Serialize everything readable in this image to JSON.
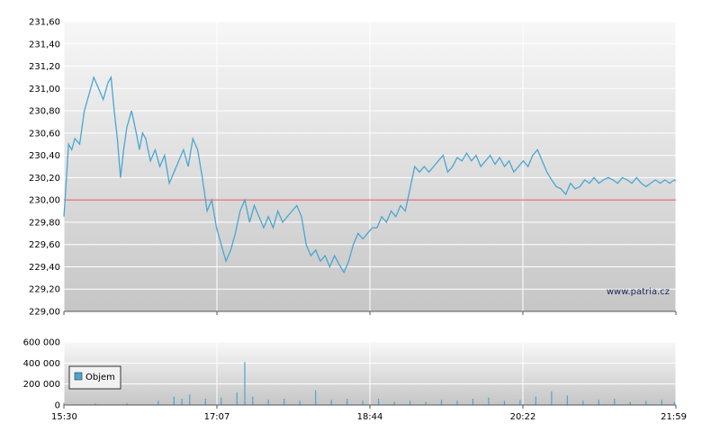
{
  "watermark": "www.patria.cz",
  "colors": {
    "price_line": "#4aa6d1",
    "reference_line": "#e0505a",
    "volume_bar": "#4aa6d1",
    "grid": "#ffffff",
    "plot_bg_top": "#f7f7f7",
    "plot_bg_bottom": "#c6c6c6",
    "axis": "#555555"
  },
  "chart_data": [
    {
      "type": "line",
      "name": "price",
      "ylim": [
        229.0,
        231.6
      ],
      "y_ticks": [
        "229,00",
        "229,20",
        "229,40",
        "229,60",
        "229,80",
        "230,00",
        "230,20",
        "230,40",
        "230,60",
        "230,80",
        "231,00",
        "231,20",
        "231,40",
        "231,60"
      ],
      "reference_value": 230.0,
      "x_ticks": [
        "15:30",
        "17:07",
        "18:44",
        "20:22",
        "21:59"
      ],
      "x_domain_minutes": [
        930,
        1319
      ],
      "grid": true,
      "series": [
        {
          "x": [
            930,
            931,
            933,
            935,
            937,
            940,
            943,
            946,
            949,
            952,
            955,
            958,
            960,
            962,
            964,
            966,
            968,
            970,
            973,
            976,
            978,
            980,
            982,
            985,
            988,
            991,
            994,
            997,
            1000,
            1003,
            1006,
            1009,
            1012,
            1015,
            1018,
            1021,
            1024,
            1027,
            1030,
            1033,
            1036,
            1039,
            1042,
            1045,
            1048,
            1051,
            1054,
            1057,
            1060,
            1063,
            1066,
            1069,
            1072,
            1075,
            1078,
            1081,
            1084,
            1087,
            1090,
            1093,
            1096,
            1099,
            1102,
            1105,
            1108,
            1111,
            1114,
            1117,
            1120,
            1123,
            1126,
            1129,
            1132,
            1135,
            1138,
            1141,
            1144,
            1147,
            1150,
            1153,
            1156,
            1159,
            1162,
            1165,
            1168,
            1171,
            1174,
            1177,
            1180,
            1183,
            1186,
            1189,
            1192,
            1195,
            1198,
            1201,
            1204,
            1207,
            1210,
            1213,
            1216,
            1219,
            1222,
            1225,
            1228,
            1231,
            1234,
            1237,
            1240,
            1243,
            1246,
            1249,
            1252,
            1255,
            1258,
            1261,
            1264,
            1267,
            1270,
            1273,
            1276,
            1279,
            1282,
            1285,
            1288,
            1291,
            1294,
            1297,
            1300,
            1303,
            1306,
            1309,
            1312,
            1315,
            1318,
            1319
          ],
          "y": [
            229.85,
            230.05,
            230.5,
            230.45,
            230.55,
            230.5,
            230.8,
            230.95,
            231.1,
            231.0,
            230.9,
            231.05,
            231.1,
            230.8,
            230.55,
            230.2,
            230.45,
            230.65,
            230.8,
            230.6,
            230.45,
            230.6,
            230.55,
            230.35,
            230.45,
            230.3,
            230.4,
            230.15,
            230.25,
            230.35,
            230.45,
            230.3,
            230.55,
            230.45,
            230.2,
            229.9,
            230.0,
            229.75,
            229.6,
            229.45,
            229.55,
            229.7,
            229.9,
            230.0,
            229.8,
            229.95,
            229.85,
            229.75,
            229.85,
            229.75,
            229.9,
            229.8,
            229.85,
            229.9,
            229.95,
            229.85,
            229.6,
            229.5,
            229.55,
            229.45,
            229.5,
            229.4,
            229.5,
            229.42,
            229.35,
            229.45,
            229.6,
            229.7,
            229.65,
            229.7,
            229.75,
            229.75,
            229.85,
            229.8,
            229.9,
            229.85,
            229.95,
            229.9,
            230.1,
            230.3,
            230.25,
            230.3,
            230.25,
            230.3,
            230.35,
            230.4,
            230.25,
            230.3,
            230.38,
            230.35,
            230.42,
            230.35,
            230.4,
            230.3,
            230.35,
            230.4,
            230.32,
            230.38,
            230.3,
            230.35,
            230.25,
            230.3,
            230.35,
            230.3,
            230.4,
            230.45,
            230.35,
            230.25,
            230.18,
            230.12,
            230.1,
            230.05,
            230.15,
            230.1,
            230.12,
            230.18,
            230.15,
            230.2,
            230.15,
            230.18,
            230.2,
            230.18,
            230.15,
            230.2,
            230.18,
            230.15,
            230.2,
            230.15,
            230.12,
            230.15,
            230.18,
            230.15,
            230.18,
            230.15,
            230.18,
            230.17
          ]
        }
      ]
    },
    {
      "type": "bar",
      "name": "volume",
      "ylim": [
        0,
        600000
      ],
      "y_ticks": [
        "0",
        "200 000",
        "400 000",
        "600 000"
      ],
      "x_ticks": [
        "15:30",
        "17:07",
        "18:44",
        "20:22",
        "21:59"
      ],
      "legend": "Objem",
      "legend_position": "top-left",
      "grid": true,
      "x": [
        930,
        950,
        970,
        990,
        1000,
        1005,
        1010,
        1020,
        1030,
        1040,
        1045,
        1050,
        1060,
        1070,
        1080,
        1090,
        1100,
        1110,
        1120,
        1130,
        1140,
        1150,
        1160,
        1170,
        1180,
        1190,
        1200,
        1210,
        1220,
        1230,
        1240,
        1250,
        1260,
        1270,
        1280,
        1290,
        1300,
        1310,
        1318
      ],
      "values": [
        20000,
        15000,
        18000,
        40000,
        80000,
        60000,
        100000,
        60000,
        70000,
        120000,
        410000,
        80000,
        50000,
        60000,
        40000,
        140000,
        50000,
        60000,
        40000,
        60000,
        30000,
        40000,
        30000,
        50000,
        40000,
        60000,
        70000,
        40000,
        50000,
        80000,
        130000,
        90000,
        40000,
        50000,
        60000,
        30000,
        40000,
        50000,
        30000
      ]
    }
  ]
}
